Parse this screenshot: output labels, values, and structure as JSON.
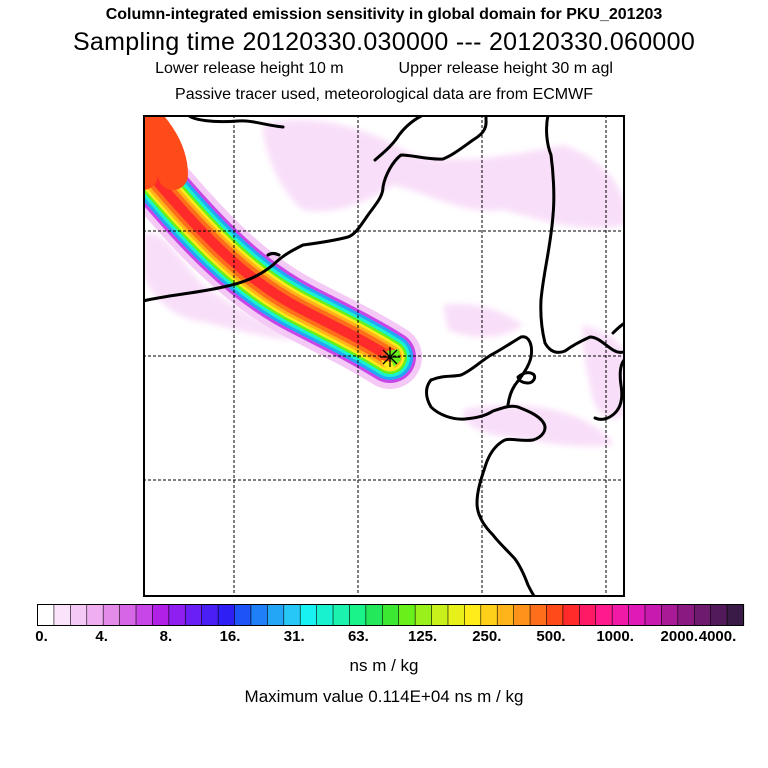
{
  "header": {
    "title": "Column-integrated emission sensitivity in global domain for PKU_201203",
    "sampling_time": "Sampling time   20120330.030000 --- 20120330.060000",
    "lower_release": "Lower release height   10 m",
    "upper_release": "Upper release height   30 m    agl",
    "tracer_info": "Passive tracer used, meteorological data are from ECMWF"
  },
  "chart_data": {
    "type": "heatmap",
    "title": "Column-integrated emission sensitivity in global domain for PKU_201203",
    "units": "ns m / kg",
    "max_value": "0.114E+04",
    "release_site": {
      "marker": "star"
    },
    "colorbar": {
      "tick_labels": [
        "0.",
        "4.",
        "8.",
        "16.",
        "31.",
        "63.",
        "125.",
        "250.",
        "500.",
        "1000.",
        "2000.",
        "4000."
      ],
      "colors": [
        "#ffffff",
        "#fbe4fb",
        "#f5c9f5",
        "#eeaef0",
        "#e48ae8",
        "#d766e6",
        "#c845e8",
        "#b020e6",
        "#8e1ff0",
        "#6a1ff5",
        "#4a1ff5",
        "#2e1ff5",
        "#1c54f7",
        "#1f7ff7",
        "#24a6f7",
        "#27c8f7",
        "#19f2f2",
        "#19f2cf",
        "#1af2ad",
        "#1af28a",
        "#22e85a",
        "#3ce832",
        "#69f01a",
        "#9af01a",
        "#c8f01a",
        "#e8f01a",
        "#ffec1a",
        "#ffd01a",
        "#ffb41a",
        "#ff921a",
        "#ff6e1a",
        "#ff4a1a",
        "#ff2a2a",
        "#ff1a66",
        "#ff1a8e",
        "#f01aa6",
        "#e01ab6",
        "#c81aae",
        "#a81a96",
        "#8a1a82",
        "#6e1a6e",
        "#521a5a",
        "#3a1a46"
      ]
    }
  },
  "footer": {
    "unit_label": "ns m / kg",
    "max_value_text": "Maximum value  0.114E+04 ns m / kg"
  }
}
